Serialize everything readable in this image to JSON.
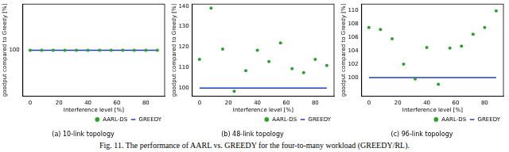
{
  "caption": "Fig. 11. The performance of AARL vs. GREEDY for the four-to-many workload (GREEDY/RL).",
  "chart_data": [
    {
      "type": "scatter",
      "title": "(a) 10-link topology",
      "x_label": "Interference level [%]",
      "y_label": "goodput compared to Greedy [%]",
      "xlim": [
        -5,
        93
      ],
      "xticks": [
        0,
        20,
        40,
        60,
        80
      ],
      "ylim": [
        99.9,
        100.1
      ],
      "yticks": [
        100
      ],
      "grid": false,
      "legend": "lower right",
      "x": [
        0,
        8,
        16,
        24,
        32,
        40,
        48,
        56,
        64,
        72,
        80,
        88
      ],
      "series": [
        {
          "name": "AARL-DS",
          "type": "scatter",
          "color": "#2ca02c",
          "marker": "circle",
          "values": [
            100,
            100,
            100,
            100,
            100,
            100,
            100,
            100,
            100,
            100,
            100,
            100
          ]
        },
        {
          "name": "GREEDY",
          "type": "line",
          "color": "#1f3fbf",
          "line_style": "solid",
          "values": [
            100,
            100,
            100,
            100,
            100,
            100,
            100,
            100,
            100,
            100,
            100,
            100
          ]
        }
      ]
    },
    {
      "type": "scatter",
      "title": "(b) 48-link topology",
      "x_label": "Interference level [%]",
      "y_label": "goodput compared to Greedy [%]",
      "xlim": [
        -5,
        93
      ],
      "xticks": [
        0,
        20,
        40,
        60,
        80
      ],
      "ylim": [
        96,
        141
      ],
      "yticks": [
        100,
        110,
        120,
        130,
        140
      ],
      "grid": false,
      "legend": "lower right",
      "x": [
        0,
        8,
        16,
        24,
        32,
        40,
        48,
        56,
        64,
        72,
        80,
        88
      ],
      "series": [
        {
          "name": "AARL-DS",
          "type": "scatter",
          "color": "#2ca02c",
          "marker": "circle",
          "values": [
            114,
            139,
            119,
            98.5,
            108.5,
            118.5,
            113,
            122,
            109.5,
            107.5,
            114,
            111
          ]
        },
        {
          "name": "GREEDY",
          "type": "line",
          "color": "#1f3fbf",
          "line_style": "solid",
          "values": [
            100,
            100,
            100,
            100,
            100,
            100,
            100,
            100,
            100,
            100,
            100,
            100
          ]
        }
      ]
    },
    {
      "type": "scatter",
      "title": "(c) 96-link topology",
      "x_label": "Interference level [%]",
      "y_label": "goodput compared to Greedy [%]",
      "xlim": [
        -5,
        93
      ],
      "xticks": [
        0,
        20,
        40,
        60,
        80
      ],
      "ylim": [
        97.2,
        111
      ],
      "yticks": [
        100,
        102,
        104,
        106,
        108,
        110
      ],
      "grid": false,
      "legend": "lower right",
      "x": [
        0,
        8,
        16,
        24,
        32,
        40,
        48,
        56,
        64,
        72,
        80,
        88
      ],
      "series": [
        {
          "name": "AARL-DS",
          "type": "scatter",
          "color": "#2ca02c",
          "marker": "circle",
          "values": [
            107.5,
            107.2,
            105.8,
            102,
            99.8,
            104.5,
            99,
            104.4,
            104.7,
            106.5,
            107.5,
            110
          ]
        },
        {
          "name": "GREEDY",
          "type": "line",
          "color": "#1f3fbf",
          "line_style": "solid",
          "values": [
            100,
            100,
            100,
            100,
            100,
            100,
            100,
            100,
            100,
            100,
            100,
            100
          ]
        }
      ]
    }
  ]
}
